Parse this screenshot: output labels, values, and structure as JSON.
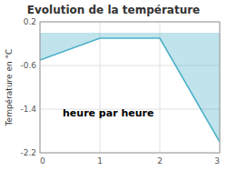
{
  "chart_data": {
    "type": "area",
    "title": "Evolution de la température",
    "ylabel": "Température en °C",
    "annotation": "heure par heure",
    "x": [
      0,
      1,
      2,
      3
    ],
    "values": [
      -0.5,
      -0.1,
      -0.1,
      -2.0
    ],
    "color": "#4ab0c8",
    "xlim": [
      0,
      3
    ],
    "ylim": [
      -2.2,
      0.2
    ],
    "xticks": [
      0,
      1,
      2,
      3
    ],
    "yticks": [
      0.2,
      -0.6,
      -1.4,
      -2.2
    ],
    "grid": true
  }
}
